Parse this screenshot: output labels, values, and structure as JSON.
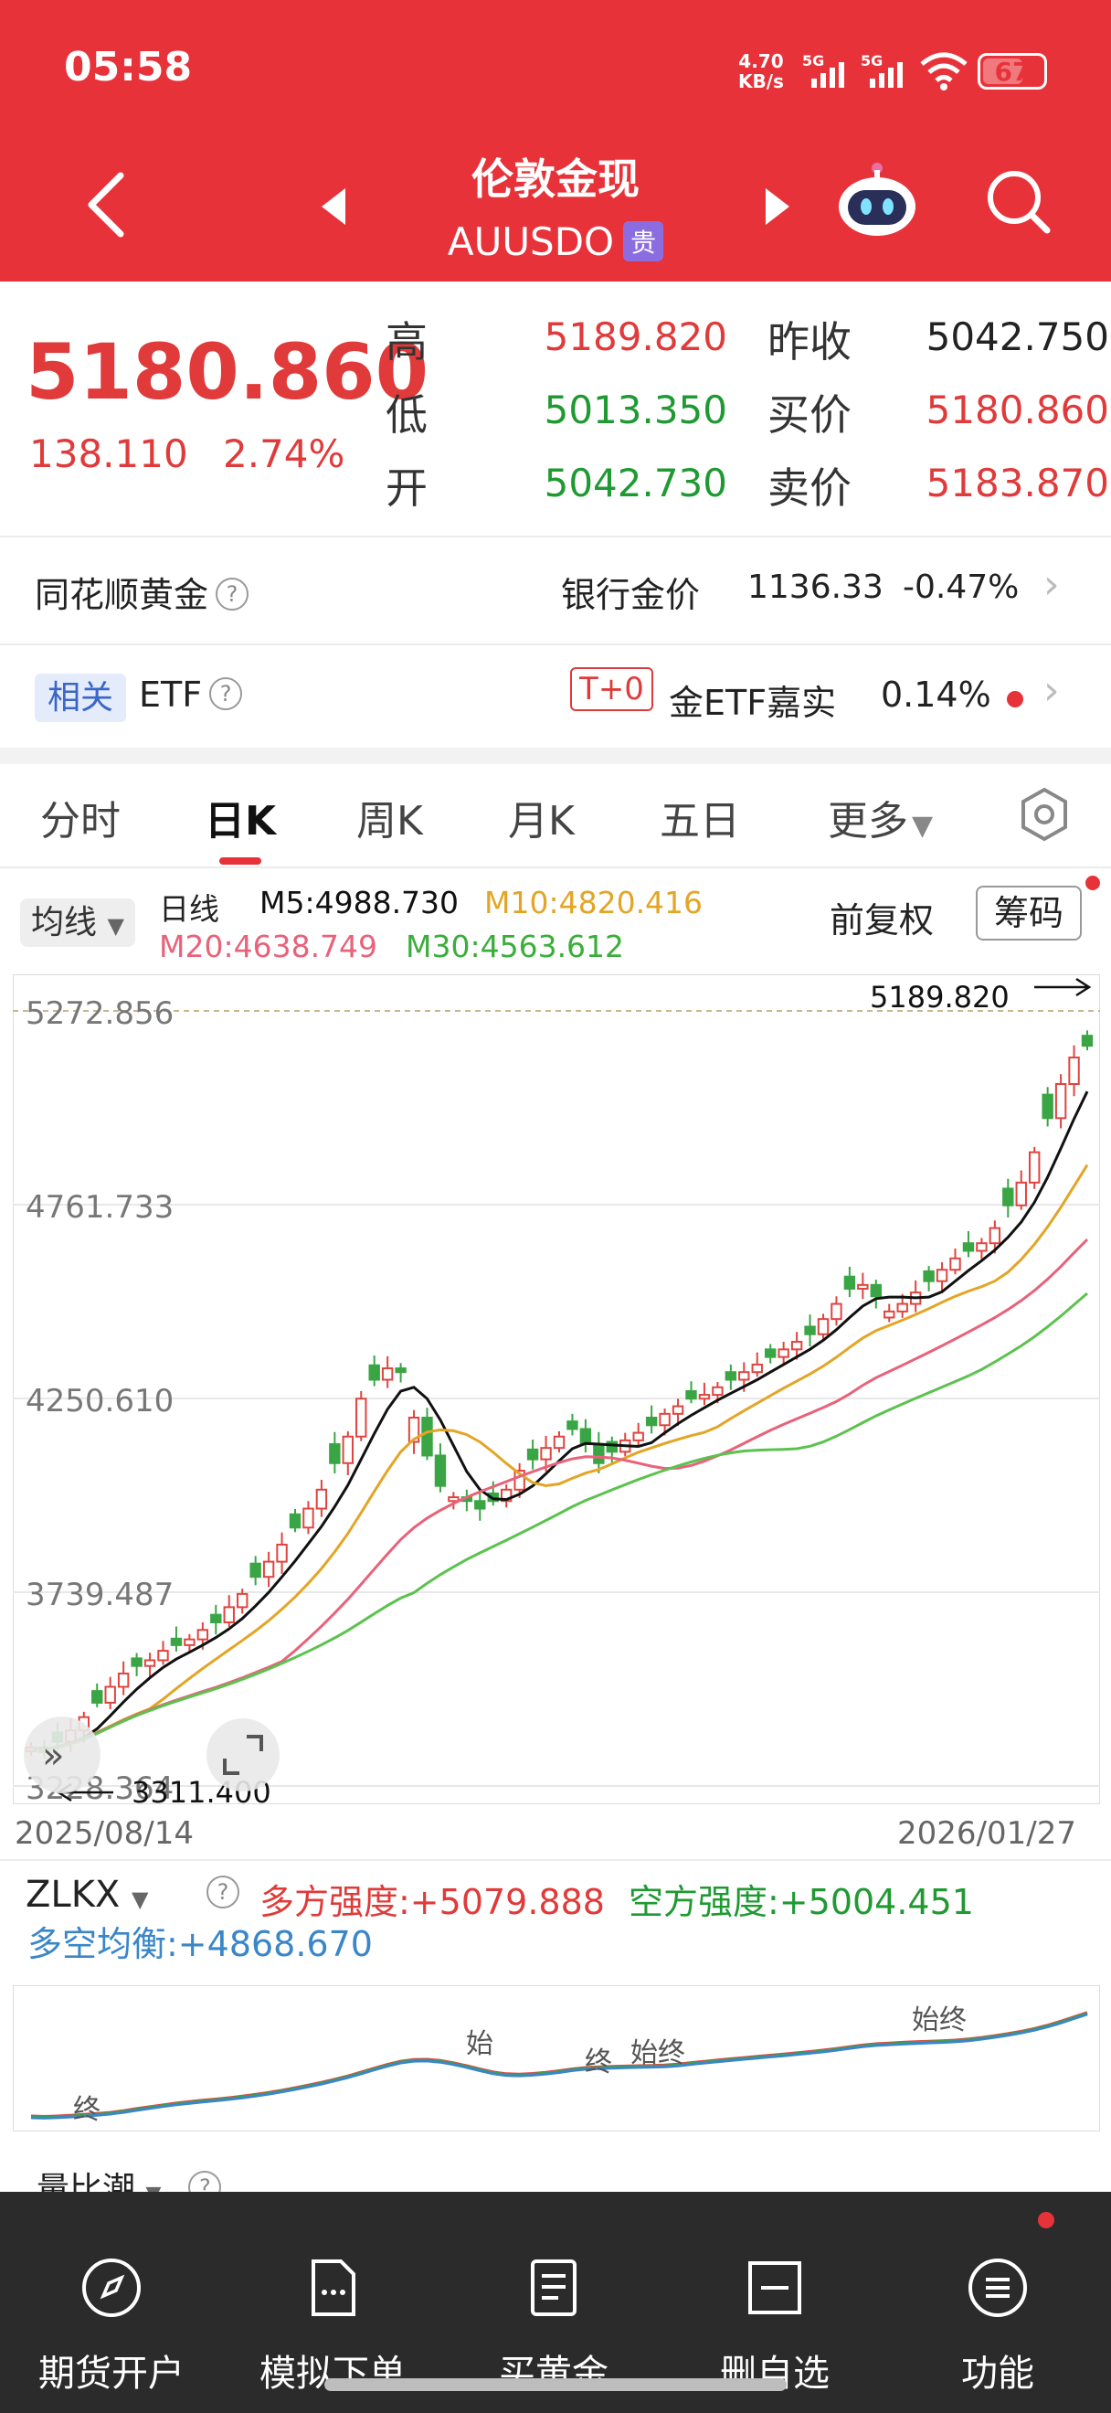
{
  "status": {
    "time": "05:58",
    "net_speed_top": "4.70",
    "net_speed_unit": "KB/s",
    "signal_1": "5G",
    "signal_2": "5G",
    "battery": "67"
  },
  "header": {
    "title": "伦敦金现",
    "symbol": "AUUSDO",
    "badge": "贵"
  },
  "quote": {
    "price": "5180.860",
    "change": "138.110",
    "change_pct": "2.74%",
    "high_label": "高",
    "high": "5189.820",
    "low_label": "低",
    "low": "5013.350",
    "open_label": "开",
    "open": "5042.730",
    "prev_close_label": "昨收",
    "prev_close": "5042.750",
    "bid_label": "买价",
    "bid": "5180.860",
    "ask_label": "卖价",
    "ask": "5183.870"
  },
  "ths_gold": {
    "label": "同花顺黄金",
    "bank_label": "银行金价",
    "bank_value": "1136.33",
    "bank_change": "-0.47%"
  },
  "etf": {
    "tag": "相关",
    "label": "ETF",
    "t0": "T+0",
    "name": "金ETF嘉实",
    "change": "0.14%"
  },
  "tabs": [
    "分时",
    "日K",
    "周K",
    "月K",
    "五日",
    "更多"
  ],
  "active_tab": "日K",
  "ma_legend": {
    "selector": "均线",
    "period": "日线",
    "m5": "M5:4988.730",
    "m10": "M10:4820.416",
    "m20": "M20:4638.749",
    "m30": "M30:4563.612",
    "adjust": "前复权",
    "chips": "筹码"
  },
  "chart_data": {
    "type": "candlestick",
    "y_axis_labels": [
      "5272.856",
      "4761.733",
      "4250.610",
      "3739.487",
      "3228.364"
    ],
    "ylim": [
      3228.364,
      5272.856
    ],
    "x_start": "2025/08/14",
    "x_end": "2026/01/27",
    "high_marker": "5189.820",
    "low_marker": "3311.400",
    "close_series": [
      3330,
      3318,
      3345,
      3375,
      3410,
      3448,
      3490,
      3525,
      3545,
      3560,
      3585,
      3600,
      3615,
      3640,
      3660,
      3700,
      3735,
      3780,
      3820,
      3865,
      3910,
      3960,
      4010,
      4080,
      4150,
      4250,
      4300,
      4330,
      4320,
      4200,
      4100,
      4020,
      3990,
      3980,
      3960,
      3980,
      4010,
      4060,
      4090,
      4120,
      4150,
      4170,
      4130,
      4080,
      4110,
      4140,
      4160,
      4180,
      4210,
      4230,
      4250,
      4260,
      4280,
      4300,
      4320,
      4340,
      4360,
      4380,
      4400,
      4420,
      4460,
      4500,
      4540,
      4550,
      4520,
      4480,
      4500,
      4530,
      4560,
      4590,
      4620,
      4640,
      4660,
      4700,
      4760,
      4820,
      4900,
      4990,
      5080,
      5150,
      5180.86
    ],
    "ma_series": [
      {
        "name": "M5",
        "color": "#111111"
      },
      {
        "name": "M10",
        "color": "#e3a526"
      },
      {
        "name": "M20",
        "color": "#e8627a"
      },
      {
        "name": "M30",
        "color": "#5cc24f"
      }
    ]
  },
  "zlkx": {
    "selector": "ZLKX",
    "long_label": "多方强度:+5079.888",
    "short_label": "空方强度:+5004.451",
    "balance_label": "多空均衡:+4868.670",
    "marks": [
      "终",
      "始",
      "终",
      "始终",
      "始终"
    ]
  },
  "next_indicator": "量比潮",
  "bottom_nav": [
    "期货开户",
    "模拟下单",
    "买黄金",
    "删自选",
    "功能"
  ]
}
